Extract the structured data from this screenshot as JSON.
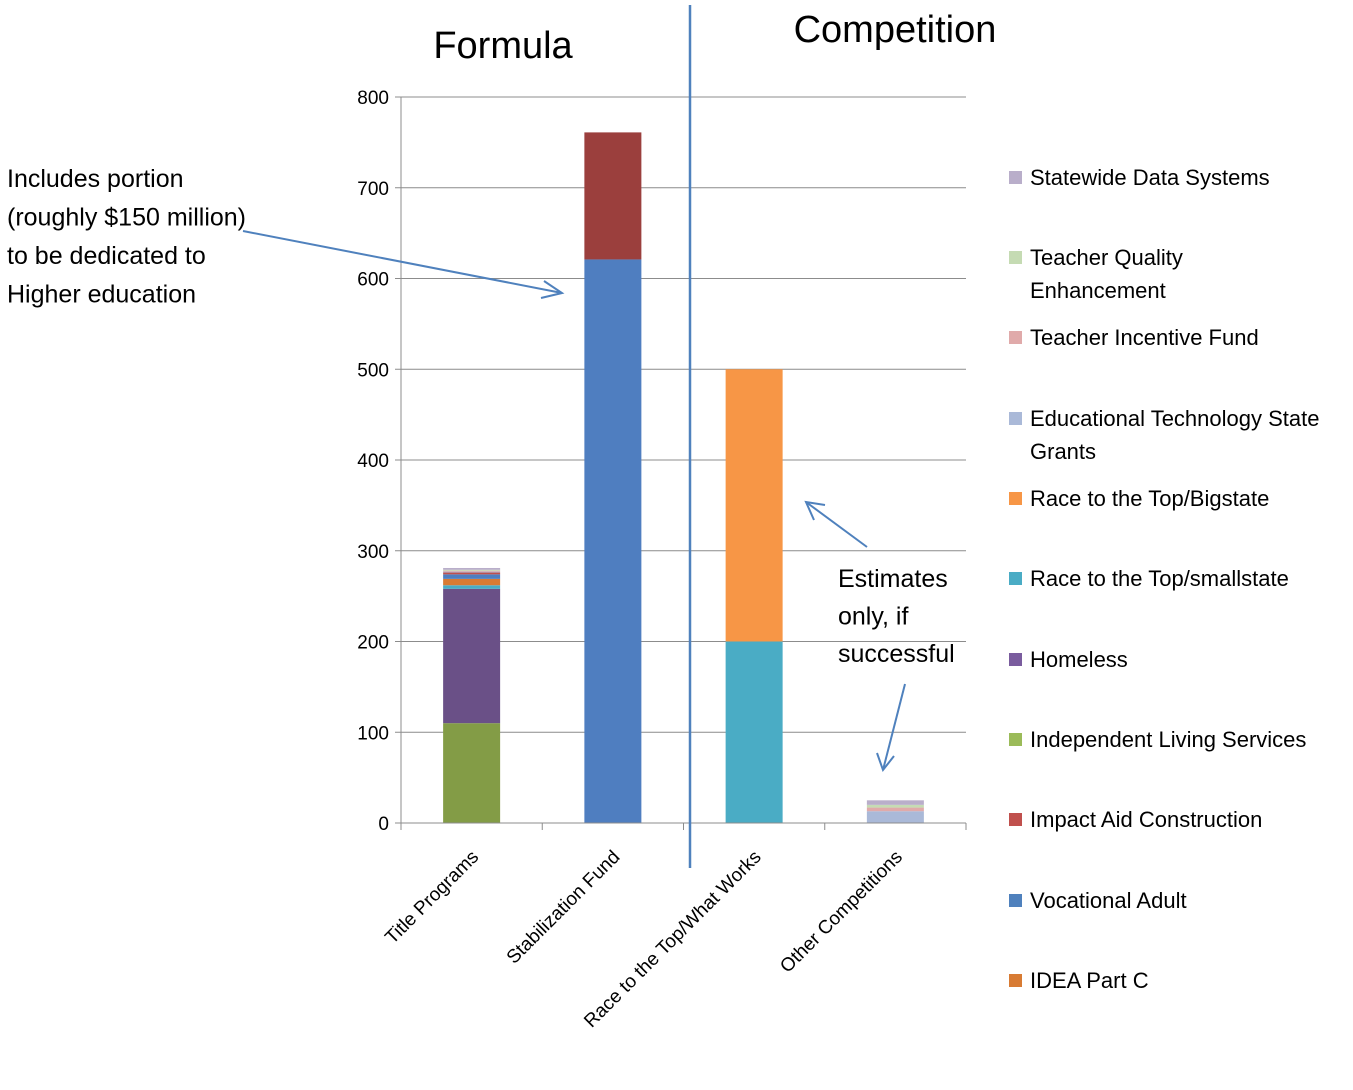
{
  "chart_data": {
    "type": "bar",
    "stacked": true,
    "categories": [
      "Title Programs",
      "Stabilization Fund",
      "Race to the Top/What Works",
      "Other Competitions"
    ],
    "ylim": [
      0,
      800
    ],
    "yticks": [
      0,
      100,
      200,
      300,
      400,
      500,
      600,
      700,
      800
    ],
    "grid": true,
    "legend_position": "right",
    "section_labels": [
      "Formula",
      "Competition"
    ],
    "series": [
      {
        "name": "Independent Living Services",
        "color": "#839C46",
        "values": [
          110,
          0,
          0,
          0
        ]
      },
      {
        "name": "Homeless",
        "color": "#6A5087",
        "values": [
          148,
          0,
          0,
          0
        ]
      },
      {
        "name": "Race to the Top/smallstate",
        "color": "#4AACC5",
        "values": [
          4,
          0,
          200,
          0
        ]
      },
      {
        "name": "IDEA Part C",
        "color": "#D87B33",
        "values": [
          7,
          0,
          0,
          0
        ]
      },
      {
        "name": "Vocational Adult",
        "color": "#4F7EC0",
        "values": [
          5,
          621,
          0,
          0
        ]
      },
      {
        "name": "Impact Aid Construction",
        "color": "#C0504D",
        "values": [
          2,
          0,
          0,
          0
        ]
      },
      {
        "name": "Stabilization Fund (2)",
        "color": "#9B3F3D",
        "values": [
          0,
          140,
          0,
          0
        ]
      },
      {
        "name": "Race to the Top/Bigstate",
        "color": "#F79646",
        "values": [
          0,
          0,
          300,
          0
        ]
      },
      {
        "name": "Educational Technology State Grants",
        "color": "#AAB9D8",
        "values": [
          1,
          0,
          0,
          13
        ]
      },
      {
        "name": "Teacher Incentive Fund",
        "color": "#E0AAAA",
        "values": [
          1,
          0,
          0,
          4
        ]
      },
      {
        "name": "Teacher Quality Enhancement",
        "color": "#C5DBB3",
        "values": [
          1,
          0,
          0,
          3
        ]
      },
      {
        "name": "Statewide Data Systems",
        "color": "#B9AECA",
        "values": [
          2,
          0,
          0,
          5
        ]
      }
    ],
    "legend": [
      {
        "label": "Statewide Data Systems",
        "color": "#B9AECA",
        "lines": [
          "Statewide Data Systems"
        ]
      },
      {
        "label": "Teacher Quality Enhancement",
        "color": "#C5DBB3",
        "lines": [
          "Teacher Quality",
          "Enhancement"
        ]
      },
      {
        "label": "Teacher Incentive Fund",
        "color": "#E0AAAA",
        "lines": [
          "Teacher Incentive Fund"
        ]
      },
      {
        "label": "Educational Technology State Grants",
        "color": "#AAB9D8",
        "lines": [
          "Educational Technology State",
          "Grants"
        ]
      },
      {
        "label": "Race to the Top/Bigstate",
        "color": "#F79646",
        "lines": [
          "Race to the Top/Bigstate"
        ]
      },
      {
        "label": "Race to the Top/smallstate",
        "color": "#4AACC5",
        "lines": [
          "Race to the Top/smallstate"
        ]
      },
      {
        "label": "Homeless",
        "color": "#7A5C9E",
        "lines": [
          "Homeless"
        ]
      },
      {
        "label": "Independent Living Services",
        "color": "#9BBB59",
        "lines": [
          "Independent Living Services"
        ]
      },
      {
        "label": "Impact Aid Construction",
        "color": "#C0504D",
        "lines": [
          "Impact Aid Construction"
        ]
      },
      {
        "label": "Vocational Adult",
        "color": "#4F81BD",
        "lines": [
          "Vocational Adult"
        ]
      },
      {
        "label": "IDEA Part C",
        "color": "#D87B33",
        "lines": [
          "IDEA Part C"
        ]
      }
    ],
    "annotations": [
      {
        "lines": [
          "Includes portion",
          "(roughly $150 million)",
          "to be dedicated to",
          "Higher education"
        ]
      },
      {
        "lines": [
          "Estimates",
          "only, if",
          "successful"
        ]
      }
    ]
  }
}
